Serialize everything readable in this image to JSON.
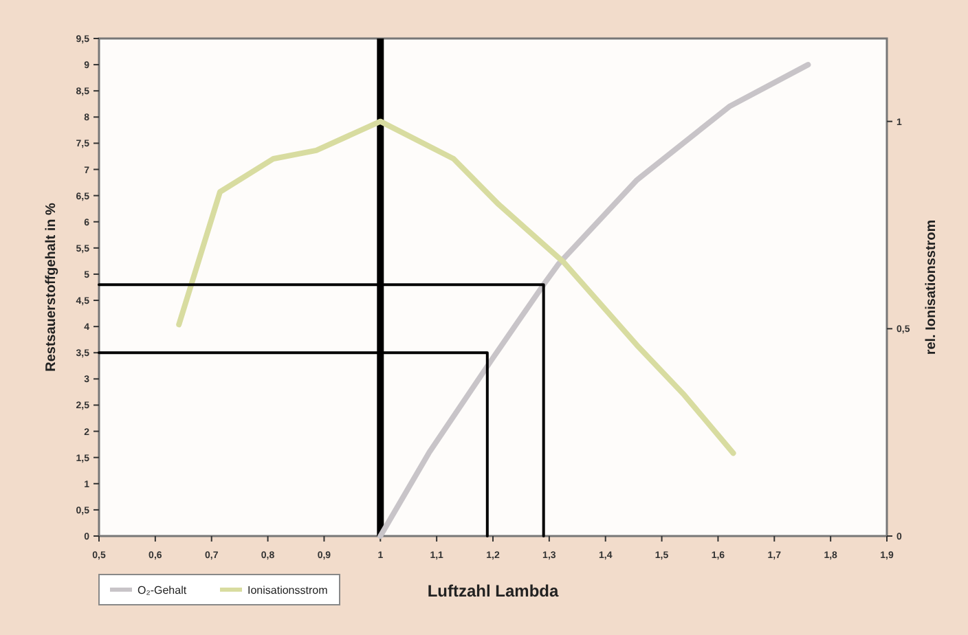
{
  "chart_data": {
    "type": "line",
    "xlabel": "Luftzahl Lambda",
    "ylabel": "Restsauerstoffgehalt in %",
    "y2label": "rel. Ionisationsstrom",
    "xlim": [
      0.5,
      1.9
    ],
    "xticks": [
      {
        "value": 0.5,
        "label": "0,5"
      },
      {
        "value": 0.6,
        "label": "0,6"
      },
      {
        "value": 0.7,
        "label": "0,7"
      },
      {
        "value": 0.8,
        "label": "0,8"
      },
      {
        "value": 0.9,
        "label": "0,9"
      },
      1,
      {
        "value": 1.1,
        "label": "1,1"
      },
      {
        "value": 1.2,
        "label": "1,2"
      },
      {
        "value": 1.3,
        "label": "1,3"
      },
      {
        "value": 1.4,
        "label": "1,4"
      },
      {
        "value": 1.5,
        "label": "1,5"
      },
      {
        "value": 1.6,
        "label": "1,6"
      },
      {
        "value": 1.7,
        "label": "1,7"
      },
      {
        "value": 1.8,
        "label": "1,8"
      },
      {
        "value": 1.9,
        "label": "1,9"
      }
    ],
    "ylim": [
      0,
      9.5
    ],
    "yticks": [
      0,
      {
        "value": 0.5,
        "label": "0,5"
      },
      1,
      {
        "value": 1.5,
        "label": "1,5"
      },
      2,
      {
        "value": 2.5,
        "label": "2,5"
      },
      3,
      {
        "value": 3.5,
        "label": "3,5"
      },
      4,
      {
        "value": 4.5,
        "label": "4,5"
      },
      5,
      {
        "value": 5.5,
        "label": "5,5"
      },
      6,
      {
        "value": 6.5,
        "label": "6,5"
      },
      7,
      {
        "value": 7.5,
        "label": "7,5"
      },
      8,
      {
        "value": 8.5,
        "label": "8,5"
      },
      9,
      {
        "value": 9.5,
        "label": "9,5"
      }
    ],
    "y2lim": [
      0,
      1.2
    ],
    "y2ticks": [
      0,
      {
        "value": 0.5,
        "label": "0,5"
      },
      1
    ],
    "ref_lines": [
      {
        "axis": "x",
        "value": 1,
        "color": "#000000"
      }
    ],
    "grid": false,
    "legend": "bottom left",
    "marker": "none",
    "line_style": "solid",
    "series": [
      {
        "name": "O₂-Gehalt",
        "color": "#c8c4c8",
        "x": [
          1.0,
          1.087,
          1.2,
          1.29,
          1.317,
          1.456,
          1.62,
          1.76
        ],
        "values": [
          0,
          1.6,
          3.4,
          4.8,
          5.2,
          6.8,
          8.2,
          9.0
        ]
      },
      {
        "name": "Ionisationsstrom",
        "color": "#d8dca0",
        "axis": "y2",
        "x": [
          0.642,
          0.715,
          0.81,
          0.886,
          1.0,
          1.13,
          1.21,
          1.326,
          1.456,
          1.54,
          1.627
        ],
        "values": [
          0.51,
          0.83,
          0.91,
          0.93,
          1.0,
          0.91,
          0.8,
          0.66,
          0.46,
          0.34,
          0.2
        ]
      },
      {
        "color": "#000000",
        "x": [
          0.5,
          1.19,
          1.19
        ],
        "values": [
          3.5,
          3.5,
          0
        ]
      },
      {
        "color": "#000000",
        "x": [
          0.5,
          1.29,
          1.29
        ],
        "values": [
          4.8,
          4.8,
          0
        ]
      }
    ]
  }
}
